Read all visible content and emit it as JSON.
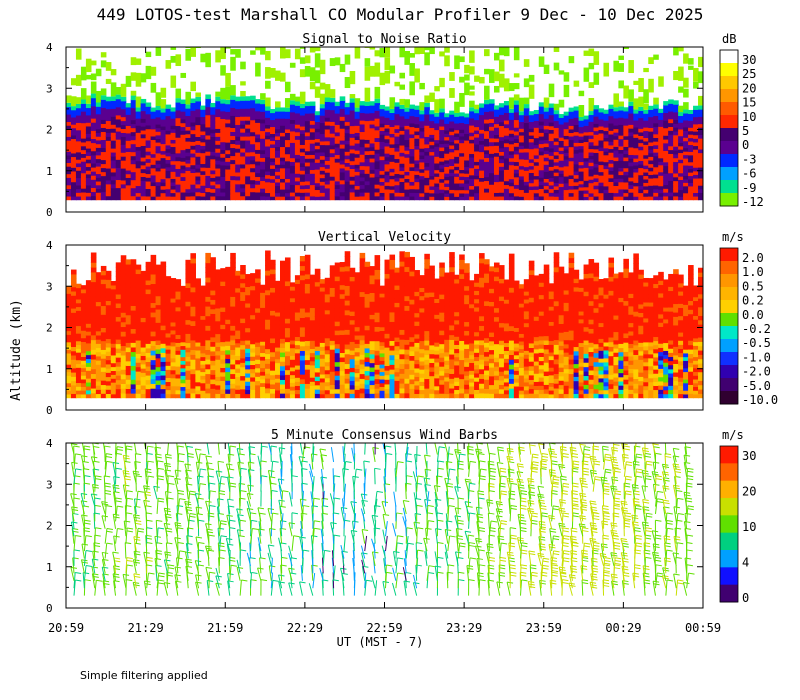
{
  "title": "449 LOTOS-test Marshall CO Modular Profiler  9 Dec - 10 Dec 2025",
  "footer_note": "Simple filtering applied",
  "colors": {
    "axis": "#000000",
    "background": "#ffffff"
  },
  "chart_data": [
    {
      "type": "heatmap",
      "title": "Signal to Noise Ratio",
      "units": "dB",
      "ylabel": "Altitude (km)",
      "ylim": [
        0,
        4
      ],
      "yticks": [
        "0",
        "1",
        "2",
        "3",
        "4"
      ],
      "colorbar_labels": [
        "30",
        "25",
        "20",
        "15",
        "10",
        "5",
        "0",
        "-3",
        "-6",
        "-9",
        "-12"
      ],
      "colorbar_colors": [
        "#ffffff",
        "#ffff00",
        "#ffc800",
        "#ff9600",
        "#ff5a00",
        "#ff2800",
        "#440070",
        "#5a0090",
        "#0028ff",
        "#00a0ff",
        "#00e090",
        "#78f000"
      ],
      "profile_top_km": [
        2.6,
        2.75,
        2.7,
        2.6,
        2.65,
        2.8,
        2.7,
        2.6,
        2.55,
        2.7,
        2.65,
        2.6,
        2.55,
        2.5,
        2.6,
        2.55,
        2.5,
        2.45,
        2.5,
        2.55,
        2.6,
        2.5
      ],
      "dominant_layers": [
        {
          "from_km": 0.3,
          "to_km": 2.0,
          "level": "5 to 10 dB (purple / red mix)"
        },
        {
          "from_km": 2.0,
          "to_km": 2.5,
          "level": "-3 to 0 dB (blue)"
        },
        {
          "from_km": 2.5,
          "to_km": 4.0,
          "level": "-12 to -9 dB (green, sparse)"
        }
      ]
    },
    {
      "type": "heatmap",
      "title": "Vertical Velocity",
      "units": "m/s",
      "ylim": [
        0,
        4
      ],
      "yticks": [
        "0",
        "1",
        "2",
        "3",
        "4"
      ],
      "colorbar_labels": [
        "2.0",
        "1.0",
        "0.5",
        "0.2",
        "0.0",
        "-0.2",
        "-0.5",
        "-1.0",
        "-2.0",
        "-5.0",
        "-10.0"
      ],
      "colorbar_colors": [
        "#ff1a00",
        "#ff6400",
        "#ff9600",
        "#ffb400",
        "#ffd000",
        "#60e000",
        "#00e8c8",
        "#00a0ff",
        "#1030ff",
        "#3000b0",
        "#400070",
        "#300030"
      ],
      "dominant_layers": [
        {
          "from_km": 0.3,
          "to_km": 1.5,
          "level": "0.2 to 1.0 m/s with downdrafts -0.5 to -2.0"
        },
        {
          "from_km": 1.5,
          "to_km": 3.4,
          "level": "1.0 to 2.0 m/s (red)"
        }
      ]
    },
    {
      "type": "wind_barbs",
      "title": "5 Minute Consensus Wind Barbs",
      "units": "m/s",
      "ylim": [
        0,
        4
      ],
      "yticks": [
        "0",
        "1",
        "2",
        "3",
        "4"
      ],
      "colorbar_labels": [
        "30",
        "20",
        "10",
        "4",
        "0"
      ],
      "colorbar_colors": [
        "#ff1a00",
        "#ff6400",
        "#ffb000",
        "#c8e000",
        "#60e000",
        "#00d080",
        "#00a0ff",
        "#1010ff",
        "#400070"
      ],
      "typical_speed_ms": [
        8,
        10,
        9,
        7,
        5,
        4,
        5,
        8,
        12,
        14,
        13,
        10
      ]
    }
  ],
  "x_axis": {
    "label": "UT  (MST - 7)",
    "ticks": [
      "20:59",
      "21:29",
      "21:59",
      "22:29",
      "22:59",
      "23:29",
      "23:59",
      "00:29",
      "00:59"
    ]
  }
}
